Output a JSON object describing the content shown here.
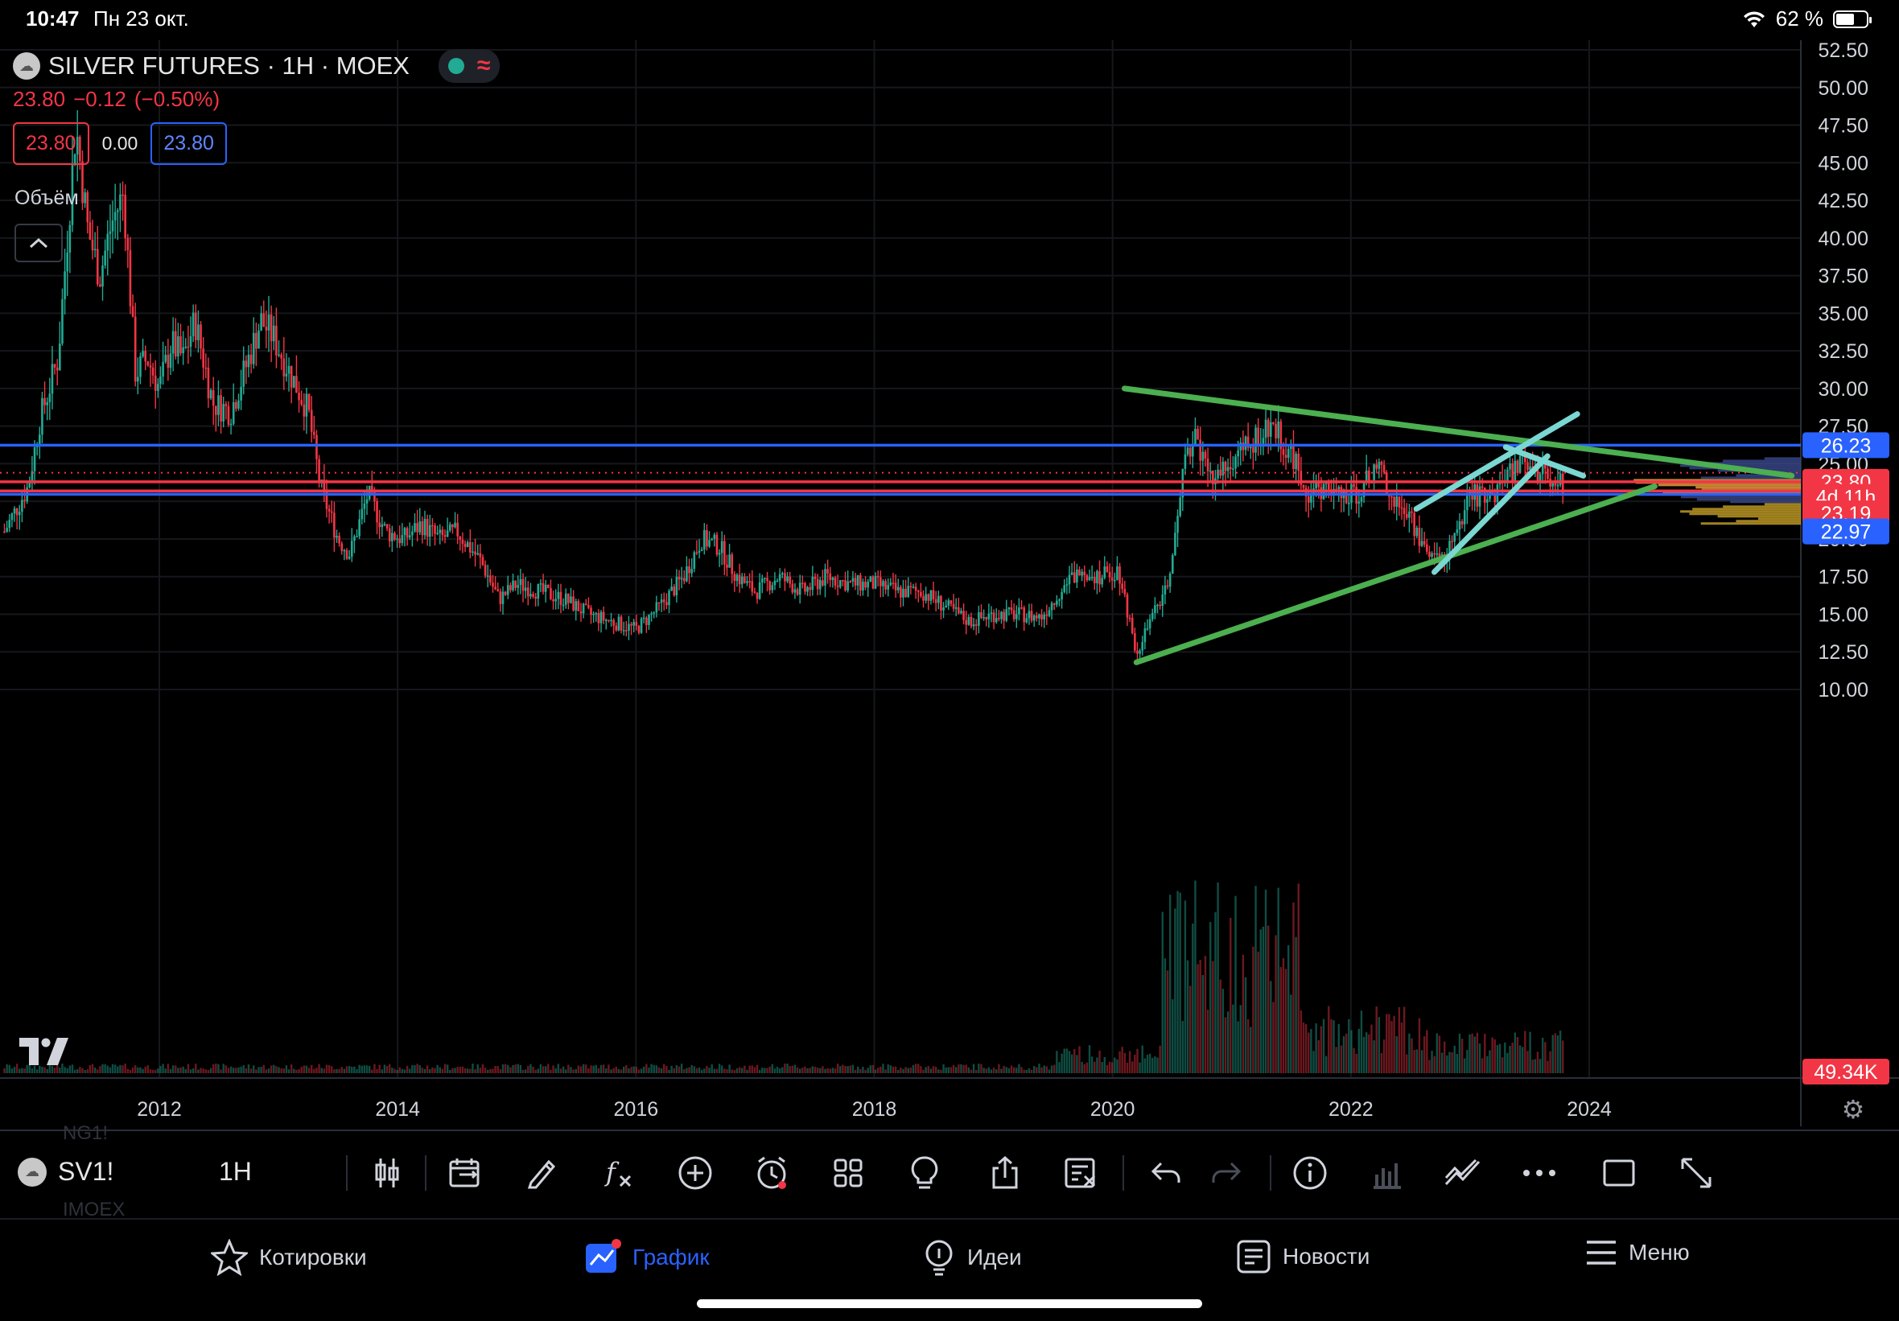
{
  "status_bar": {
    "time": "10:47",
    "date": "Пн 23 окт.",
    "battery": "62 %",
    "battery_level": 0.62
  },
  "symbol": {
    "title": "SILVER FUTURES · 1H · MOEX",
    "logo_text": "☁",
    "last": "23.80",
    "change": "−0.12",
    "change_pct": "(−0.50%)",
    "bid": "23.80",
    "spread": "0.00",
    "ask": "23.80"
  },
  "volume_label": "Объём",
  "colors": {
    "up": "#22ab94",
    "down": "#f23645",
    "blue": "#2962ff",
    "green_line": "#4caf50",
    "cyan_line": "#7ad7d2",
    "bg": "#000000"
  },
  "chart_data": {
    "type": "candlestick",
    "y_axis": {
      "ticks": [
        "52.50",
        "50.00",
        "47.50",
        "45.00",
        "42.50",
        "40.00",
        "37.50",
        "35.00",
        "32.50",
        "30.00",
        "27.50",
        "25.00",
        "22.50",
        "20.00",
        "17.50",
        "15.00",
        "12.50",
        "10.00"
      ],
      "range": [
        8.5,
        55
      ]
    },
    "x_axis": {
      "ticks": [
        "2012",
        "2014",
        "2016",
        "2018",
        "2020",
        "2022",
        "2024"
      ]
    },
    "price_path": [
      [
        2010.7,
        20.5
      ],
      [
        2010.9,
        23.5
      ],
      [
        2011.0,
        28.0
      ],
      [
        2011.15,
        32.0
      ],
      [
        2011.3,
        47.5
      ],
      [
        2011.4,
        40.5
      ],
      [
        2011.5,
        37.5
      ],
      [
        2011.6,
        41.0
      ],
      [
        2011.7,
        43.0
      ],
      [
        2011.8,
        31.0
      ],
      [
        2011.9,
        32.0
      ],
      [
        2012.0,
        30.0
      ],
      [
        2012.1,
        33.0
      ],
      [
        2012.2,
        32.0
      ],
      [
        2012.3,
        34.5
      ],
      [
        2012.45,
        29.0
      ],
      [
        2012.6,
        28.5
      ],
      [
        2012.75,
        32.0
      ],
      [
        2012.85,
        34.5
      ],
      [
        2012.95,
        33.5
      ],
      [
        2013.1,
        31.0
      ],
      [
        2013.25,
        28.5
      ],
      [
        2013.35,
        23.5
      ],
      [
        2013.5,
        20.0
      ],
      [
        2013.6,
        19.0
      ],
      [
        2013.75,
        23.0
      ],
      [
        2013.9,
        20.5
      ],
      [
        2014.05,
        20.0
      ],
      [
        2014.2,
        21.0
      ],
      [
        2014.35,
        20.0
      ],
      [
        2014.5,
        20.5
      ],
      [
        2014.7,
        18.5
      ],
      [
        2014.85,
        16.0
      ],
      [
        2015.0,
        17.0
      ],
      [
        2015.2,
        16.5
      ],
      [
        2015.4,
        16.0
      ],
      [
        2015.6,
        15.0
      ],
      [
        2015.8,
        14.5
      ],
      [
        2016.0,
        14.0
      ],
      [
        2016.2,
        15.5
      ],
      [
        2016.4,
        17.5
      ],
      [
        2016.55,
        20.0
      ],
      [
        2016.7,
        19.5
      ],
      [
        2016.85,
        17.5
      ],
      [
        2017.0,
        16.5
      ],
      [
        2017.2,
        17.5
      ],
      [
        2017.4,
        16.5
      ],
      [
        2017.6,
        17.5
      ],
      [
        2017.8,
        17.0
      ],
      [
        2018.0,
        17.0
      ],
      [
        2018.2,
        16.5
      ],
      [
        2018.4,
        16.5
      ],
      [
        2018.6,
        15.5
      ],
      [
        2018.8,
        14.5
      ],
      [
        2019.0,
        15.0
      ],
      [
        2019.2,
        15.0
      ],
      [
        2019.4,
        14.8
      ],
      [
        2019.6,
        17.0
      ],
      [
        2019.75,
        18.0
      ],
      [
        2019.9,
        17.5
      ],
      [
        2020.05,
        18.0
      ],
      [
        2020.2,
        12.5
      ],
      [
        2020.35,
        15.0
      ],
      [
        2020.5,
        18.0
      ],
      [
        2020.6,
        25.5
      ],
      [
        2020.7,
        27.0
      ],
      [
        2020.8,
        24.0
      ],
      [
        2020.95,
        24.5
      ],
      [
        2021.05,
        25.5
      ],
      [
        2021.2,
        26.5
      ],
      [
        2021.35,
        27.5
      ],
      [
        2021.5,
        25.5
      ],
      [
        2021.65,
        23.0
      ],
      [
        2021.8,
        23.5
      ],
      [
        2021.95,
        22.5
      ],
      [
        2022.1,
        23.5
      ],
      [
        2022.25,
        25.0
      ],
      [
        2022.35,
        22.5
      ],
      [
        2022.5,
        21.5
      ],
      [
        2022.6,
        19.5
      ],
      [
        2022.75,
        18.5
      ],
      [
        2022.9,
        20.5
      ],
      [
        2023.0,
        23.0
      ],
      [
        2023.15,
        22.5
      ],
      [
        2023.3,
        24.0
      ],
      [
        2023.45,
        25.5
      ],
      [
        2023.55,
        24.5
      ],
      [
        2023.7,
        24.0
      ],
      [
        2023.8,
        23.8
      ]
    ],
    "horizontal_levels": [
      {
        "price": 26.23,
        "color": "#2962ff"
      },
      {
        "price": 23.8,
        "color": "#f23645"
      },
      {
        "price": 23.19,
        "color": "#f23645"
      },
      {
        "price": 22.97,
        "color": "#2962ff"
      }
    ],
    "trendlines": [
      {
        "from": [
          2020.1,
          30.0
        ],
        "to": [
          2025.7,
          24.2
        ],
        "color": "#4caf50"
      },
      {
        "from": [
          2020.2,
          11.8
        ],
        "to": [
          2024.55,
          23.5
        ],
        "color": "#4caf50"
      },
      {
        "from": [
          2022.55,
          22.0
        ],
        "to": [
          2023.9,
          28.3
        ],
        "color": "#7ad7d2"
      },
      {
        "from": [
          2022.7,
          17.8
        ],
        "to": [
          2023.65,
          25.5
        ],
        "color": "#7ad7d2"
      },
      {
        "from": [
          2023.3,
          26.1
        ],
        "to": [
          2023.95,
          24.2
        ],
        "color": "#7ad7d2"
      }
    ],
    "price_labels": [
      {
        "text": "26.23",
        "price": 26.23,
        "bg": "#2962ff"
      },
      {
        "text": "23.80",
        "price": 23.8,
        "bg": "#f23645"
      },
      {
        "text": "4d 11h",
        "price": 22.8,
        "bg": "#f23645"
      },
      {
        "text": "23.19",
        "price": 21.7,
        "bg": "#f23645"
      },
      {
        "text": "22.97",
        "price": 20.5,
        "bg": "#2962ff"
      }
    ],
    "volume_label": "49.34K"
  },
  "toolbar": {
    "ghost_top": "NG1!",
    "ghost_bottom": "IMOEX",
    "symbol": "SV1!",
    "interval": "1H",
    "icons": [
      "candles-icon",
      "compare-icon",
      "draw-icon",
      "indicators-icon",
      "add-icon",
      "alert-icon",
      "layout-icon",
      "ideas-icon",
      "share-icon",
      "clear-icon",
      "undo-icon",
      "redo-icon",
      "info-icon",
      "volume-profile-icon",
      "trend-icon",
      "more-icon",
      "fullscreen-icon",
      "expand-icon"
    ]
  },
  "bottom_nav": {
    "items": [
      {
        "label": "Котировки",
        "icon": "star-icon"
      },
      {
        "label": "График",
        "icon": "chart-icon",
        "active": true
      },
      {
        "label": "Идеи",
        "icon": "ideas-icon"
      },
      {
        "label": "Новости",
        "icon": "news-icon"
      },
      {
        "label": "Меню",
        "icon": "menu-icon"
      }
    ]
  }
}
